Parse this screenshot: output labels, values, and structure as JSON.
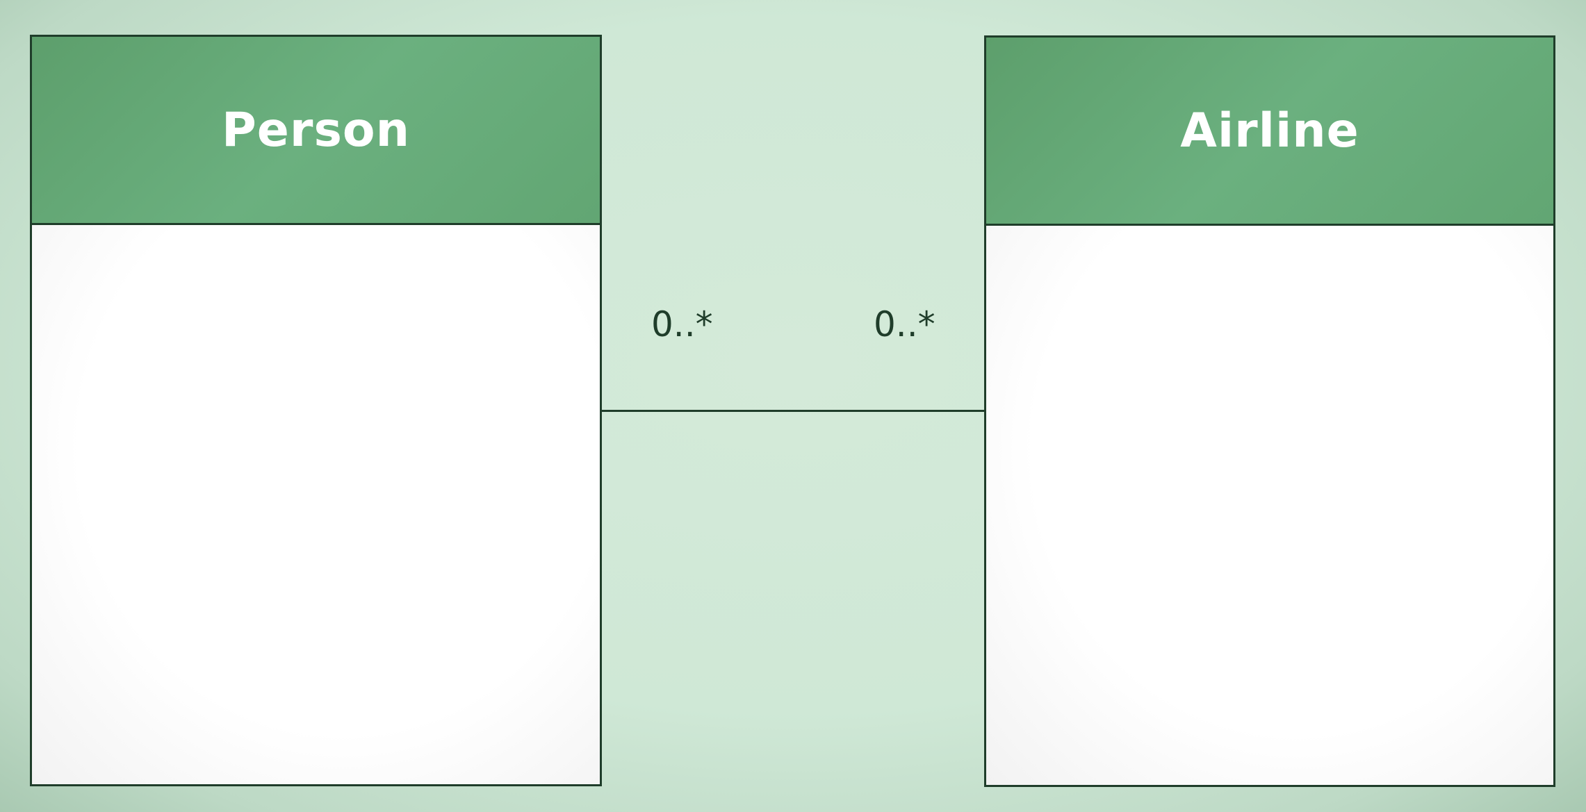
{
  "diagram": {
    "classes": [
      {
        "name": "Person"
      },
      {
        "name": "Airline"
      }
    ],
    "association": {
      "source_multiplicity": "0..*",
      "target_multiplicity": "0..*"
    }
  },
  "colors": {
    "header_fill": "#66aa78",
    "border": "#1f3d2a",
    "background": "#cfe8d6",
    "header_text": "#ffffff"
  }
}
